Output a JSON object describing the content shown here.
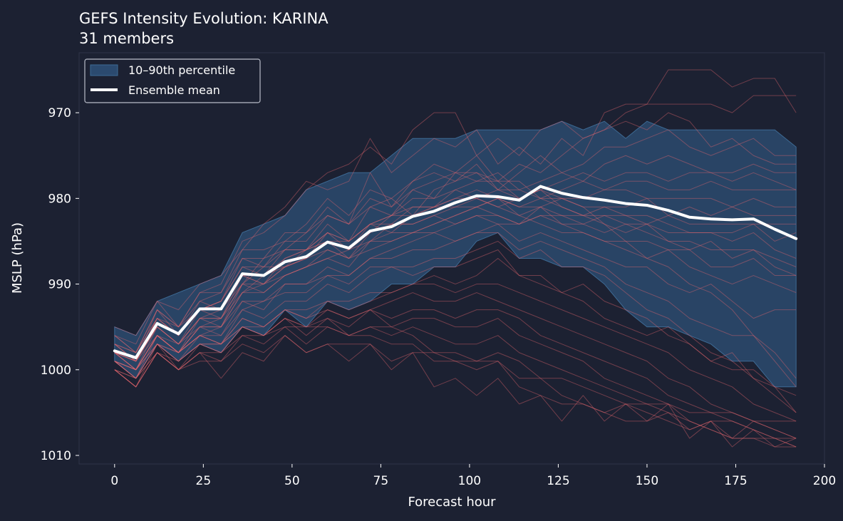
{
  "chart_data": {
    "type": "line",
    "title": "GEFS Intensity Evolution: KARINA",
    "subtitle": "31 members",
    "xlabel": "Forecast hour",
    "ylabel": "MSLP (hPa)",
    "xlim": [
      -10,
      200
    ],
    "ylim": [
      1011,
      963
    ],
    "y_inverted": true,
    "x_ticks": [
      0,
      25,
      50,
      75,
      100,
      125,
      150,
      175,
      200
    ],
    "y_ticks": [
      970,
      980,
      990,
      1000,
      1010
    ],
    "grid": false,
    "legend_position": "top-left",
    "legend": [
      {
        "label": "10–90th percentile",
        "kind": "band"
      },
      {
        "label": "Ensemble mean",
        "kind": "line"
      }
    ],
    "colors": {
      "background": "#1c2132",
      "plot_border": "#2e3448",
      "band_fill": "#2b4a6f",
      "band_stroke": "#3d6a94",
      "member": "#e8666e",
      "mean": "#ffffff"
    },
    "x": [
      0,
      6,
      12,
      18,
      24,
      30,
      36,
      42,
      48,
      54,
      60,
      66,
      72,
      78,
      84,
      90,
      96,
      102,
      108,
      114,
      120,
      126,
      132,
      138,
      144,
      150,
      156,
      162,
      168,
      174,
      180,
      186,
      192
    ],
    "mean": [
      997.8,
      998.6,
      994.6,
      995.8,
      992.9,
      992.9,
      988.8,
      989.0,
      987.4,
      986.8,
      985.1,
      985.8,
      983.8,
      983.3,
      982.1,
      981.5,
      980.5,
      979.7,
      979.8,
      980.2,
      978.6,
      979.4,
      979.9,
      980.2,
      980.6,
      980.8,
      981.4,
      982.2,
      982.4,
      982.5,
      982.4,
      983.6,
      984.7
    ],
    "band_upper": [
      995,
      996,
      992,
      991,
      990,
      989,
      984,
      983,
      982,
      979,
      978,
      977,
      977,
      975,
      973,
      973,
      973,
      972,
      972,
      972,
      972,
      971,
      972,
      971,
      973,
      971,
      972,
      972,
      972,
      972,
      972,
      972,
      974
    ],
    "band_lower": [
      999,
      1001,
      997,
      999,
      997,
      998,
      995,
      996,
      993,
      995,
      992,
      993,
      992,
      990,
      990,
      988,
      988,
      985,
      984,
      987,
      987,
      988,
      988,
      990,
      993,
      995,
      995,
      996,
      997,
      999,
      999,
      1002,
      1002
    ],
    "members": [
      [
        997,
        999,
        993,
        995,
        991,
        990,
        985,
        984,
        982,
        979,
        977,
        976,
        974,
        976,
        972,
        970,
        970,
        975,
        973,
        975,
        972,
        971,
        973,
        972,
        970,
        969,
        965,
        965,
        965,
        967,
        966,
        966,
        970
      ],
      [
        995,
        996,
        992,
        993,
        990,
        989,
        986,
        983,
        981,
        978,
        979,
        978,
        973,
        977,
        975,
        973,
        974,
        972,
        976,
        974,
        976,
        973,
        975,
        970,
        969,
        969,
        969,
        969,
        969,
        970,
        968,
        968,
        968
      ],
      [
        998,
        999,
        995,
        997,
        994,
        994,
        990,
        987,
        986,
        984,
        981,
        983,
        977,
        981,
        978,
        976,
        977,
        975,
        978,
        976,
        977,
        975,
        973,
        972,
        971,
        972,
        970,
        971,
        974,
        973,
        975,
        976,
        976
      ],
      [
        999,
        1000,
        996,
        998,
        995,
        995,
        991,
        989,
        988,
        986,
        983,
        985,
        981,
        980,
        982,
        979,
        978,
        976,
        979,
        977,
        975,
        977,
        976,
        974,
        974,
        973,
        972,
        974,
        975,
        974,
        973,
        975,
        975
      ],
      [
        996,
        998,
        994,
        995,
        993,
        992,
        987,
        988,
        985,
        985,
        982,
        983,
        981,
        982,
        979,
        980,
        977,
        978,
        977,
        979,
        978,
        977,
        978,
        976,
        975,
        976,
        975,
        976,
        977,
        977,
        976,
        977,
        977
      ],
      [
        998,
        1000,
        996,
        997,
        995,
        994,
        989,
        990,
        987,
        986,
        985,
        986,
        983,
        982,
        980,
        980,
        979,
        978,
        978,
        980,
        979,
        978,
        977,
        978,
        977,
        977,
        978,
        977,
        977,
        978,
        977,
        978,
        979
      ],
      [
        997,
        999,
        994,
        996,
        993,
        993,
        990,
        988,
        988,
        987,
        984,
        986,
        984,
        982,
        981,
        981,
        979,
        980,
        979,
        979,
        980,
        979,
        978,
        979,
        978,
        978,
        979,
        979,
        978,
        979,
        979,
        979,
        979
      ],
      [
        998,
        999,
        995,
        997,
        994,
        993,
        989,
        990,
        988,
        987,
        985,
        987,
        985,
        983,
        983,
        982,
        981,
        980,
        981,
        980,
        979,
        980,
        980,
        979,
        979,
        980,
        980,
        980,
        980,
        981,
        980,
        981,
        981
      ],
      [
        999,
        1001,
        997,
        998,
        996,
        995,
        991,
        991,
        989,
        988,
        987,
        988,
        985,
        985,
        984,
        983,
        982,
        981,
        980,
        982,
        981,
        980,
        981,
        981,
        981,
        980,
        982,
        981,
        982,
        981,
        982,
        982,
        982
      ],
      [
        997,
        998,
        993,
        996,
        993,
        992,
        988,
        988,
        986,
        986,
        984,
        985,
        983,
        984,
        982,
        981,
        981,
        981,
        980,
        981,
        981,
        982,
        982,
        982,
        982,
        983,
        982,
        983,
        983,
        983,
        983,
        983,
        983
      ],
      [
        998,
        1000,
        996,
        998,
        994,
        995,
        990,
        990,
        988,
        987,
        986,
        987,
        984,
        983,
        983,
        982,
        983,
        982,
        982,
        983,
        982,
        982,
        983,
        982,
        983,
        983,
        984,
        984,
        984,
        984,
        983,
        985,
        984
      ],
      [
        997,
        999,
        994,
        996,
        992,
        993,
        989,
        989,
        987,
        986,
        984,
        985,
        983,
        983,
        981,
        981,
        980,
        979,
        980,
        981,
        980,
        981,
        982,
        981,
        982,
        982,
        983,
        984,
        984,
        985,
        984,
        986,
        987
      ],
      [
        998,
        1000,
        995,
        997,
        993,
        994,
        990,
        991,
        989,
        988,
        987,
        986,
        985,
        984,
        984,
        983,
        982,
        981,
        982,
        983,
        981,
        983,
        983,
        984,
        983,
        984,
        985,
        985,
        986,
        986,
        986,
        987,
        988
      ],
      [
        996,
        997,
        992,
        995,
        991,
        991,
        986,
        986,
        985,
        983,
        980,
        982,
        979,
        980,
        978,
        977,
        978,
        977,
        979,
        980,
        979,
        981,
        982,
        983,
        984,
        983,
        985,
        986,
        985,
        987,
        986,
        988,
        989
      ],
      [
        999,
        1000,
        997,
        998,
        996,
        996,
        992,
        993,
        990,
        990,
        988,
        989,
        987,
        986,
        985,
        984,
        983,
        982,
        983,
        983,
        982,
        983,
        984,
        985,
        985,
        985,
        986,
        986,
        988,
        988,
        987,
        989,
        989
      ],
      [
        997,
        998,
        994,
        996,
        993,
        992,
        988,
        989,
        986,
        986,
        985,
        985,
        983,
        982,
        982,
        981,
        980,
        980,
        981,
        982,
        983,
        984,
        984,
        985,
        986,
        987,
        986,
        988,
        989,
        990,
        989,
        990,
        991
      ],
      [
        998,
        999,
        995,
        997,
        994,
        994,
        991,
        990,
        989,
        988,
        986,
        987,
        986,
        985,
        984,
        984,
        985,
        984,
        983,
        985,
        984,
        985,
        986,
        987,
        988,
        988,
        990,
        991,
        990,
        992,
        994,
        993,
        993
      ],
      [
        996,
        998,
        993,
        995,
        992,
        991,
        987,
        987,
        984,
        984,
        982,
        983,
        980,
        981,
        979,
        978,
        977,
        977,
        978,
        978,
        980,
        980,
        981,
        983,
        985,
        987,
        988,
        990,
        991,
        993,
        996,
        998,
        1001
      ],
      [
        999,
        1001,
        996,
        998,
        995,
        996,
        993,
        992,
        990,
        990,
        989,
        989,
        987,
        987,
        986,
        986,
        985,
        984,
        984,
        986,
        985,
        986,
        987,
        988,
        990,
        991,
        992,
        994,
        995,
        996,
        996,
        999,
        1002
      ],
      [
        1000,
        1001,
        997,
        999,
        996,
        997,
        993,
        994,
        992,
        992,
        990,
        991,
        989,
        988,
        988,
        987,
        987,
        986,
        985,
        987,
        986,
        988,
        988,
        989,
        991,
        993,
        994,
        996,
        998,
        999,
        1001,
        1002,
        1003
      ],
      [
        998,
        1000,
        996,
        998,
        995,
        995,
        992,
        992,
        991,
        991,
        989,
        990,
        988,
        988,
        989,
        988,
        988,
        987,
        986,
        989,
        989,
        991,
        990,
        992,
        993,
        994,
        996,
        997,
        999,
        1000,
        1000,
        1002,
        1005
      ],
      [
        1000,
        1002,
        998,
        1000,
        997,
        998,
        995,
        995,
        993,
        993,
        992,
        992,
        991,
        991,
        990,
        989,
        990,
        989,
        987,
        989,
        990,
        991,
        992,
        994,
        995,
        996,
        995,
        997,
        999,
        998,
        1001,
        1003,
        1005
      ],
      [
        999,
        1001,
        997,
        999,
        997,
        997,
        994,
        995,
        993,
        994,
        992,
        993,
        992,
        991,
        990,
        990,
        991,
        990,
        990,
        991,
        992,
        993,
        994,
        995,
        996,
        997,
        998,
        1000,
        1001,
        1002,
        1004,
        1005,
        1006
      ],
      [
        1000,
        1002,
        998,
        1000,
        998,
        998,
        996,
        996,
        995,
        995,
        993,
        994,
        993,
        992,
        991,
        992,
        992,
        991,
        992,
        993,
        994,
        995,
        996,
        997,
        998,
        999,
        1001,
        1002,
        1004,
        1005,
        1006,
        1007,
        1008
      ],
      [
        999,
        1001,
        998,
        999,
        997,
        998,
        995,
        996,
        994,
        995,
        994,
        995,
        993,
        994,
        993,
        993,
        994,
        993,
        993,
        994,
        996,
        997,
        998,
        999,
        1000,
        1001,
        1003,
        1004,
        1005,
        1006,
        1007,
        1008,
        1009
      ],
      [
        1000,
        1002,
        997,
        1000,
        998,
        999,
        996,
        997,
        995,
        997,
        995,
        996,
        995,
        995,
        994,
        994,
        995,
        995,
        994,
        996,
        997,
        998,
        999,
        1001,
        1002,
        1003,
        1004,
        1006,
        1007,
        1008,
        1008,
        1009,
        1009
      ],
      [
        999,
        1000,
        997,
        999,
        997,
        997,
        995,
        996,
        994,
        996,
        994,
        996,
        995,
        996,
        995,
        996,
        997,
        997,
        996,
        998,
        999,
        1000,
        1001,
        1002,
        1003,
        1004,
        1005,
        1006,
        1007,
        1008,
        1008,
        1008,
        1009
      ],
      [
        1000,
        1002,
        998,
        1000,
        998,
        1001,
        998,
        999,
        996,
        998,
        997,
        999,
        997,
        999,
        998,
        998,
        999,
        999,
        998,
        999,
        1001,
        1001,
        1002,
        1003,
        1004,
        1004,
        1004,
        1005,
        1005,
        1005,
        1006,
        1006,
        1006
      ],
      [
        998,
        999,
        996,
        998,
        996,
        997,
        994,
        995,
        993,
        994,
        993,
        994,
        993,
        995,
        996,
        998,
        998,
        999,
        999,
        1001,
        1001,
        1003,
        1004,
        1005,
        1004,
        1005,
        1006,
        1007,
        1006,
        1006,
        1007,
        1008,
        1008
      ],
      [
        1000,
        1001,
        998,
        1000,
        999,
        999,
        997,
        998,
        996,
        998,
        997,
        997,
        997,
        1000,
        998,
        1002,
        1001,
        1003,
        1001,
        1004,
        1003,
        1006,
        1003,
        1006,
        1004,
        1006,
        1004,
        1008,
        1006,
        1009,
        1007,
        1009,
        1008
      ],
      [
        999,
        1000,
        996,
        998,
        996,
        997,
        995,
        996,
        994,
        995,
        995,
        996,
        996,
        997,
        997,
        999,
        999,
        1000,
        999,
        1002,
        1003,
        1004,
        1004,
        1005,
        1006,
        1006,
        1005,
        1007,
        1006,
        1008,
        1006,
        1007,
        1008
      ]
    ]
  }
}
